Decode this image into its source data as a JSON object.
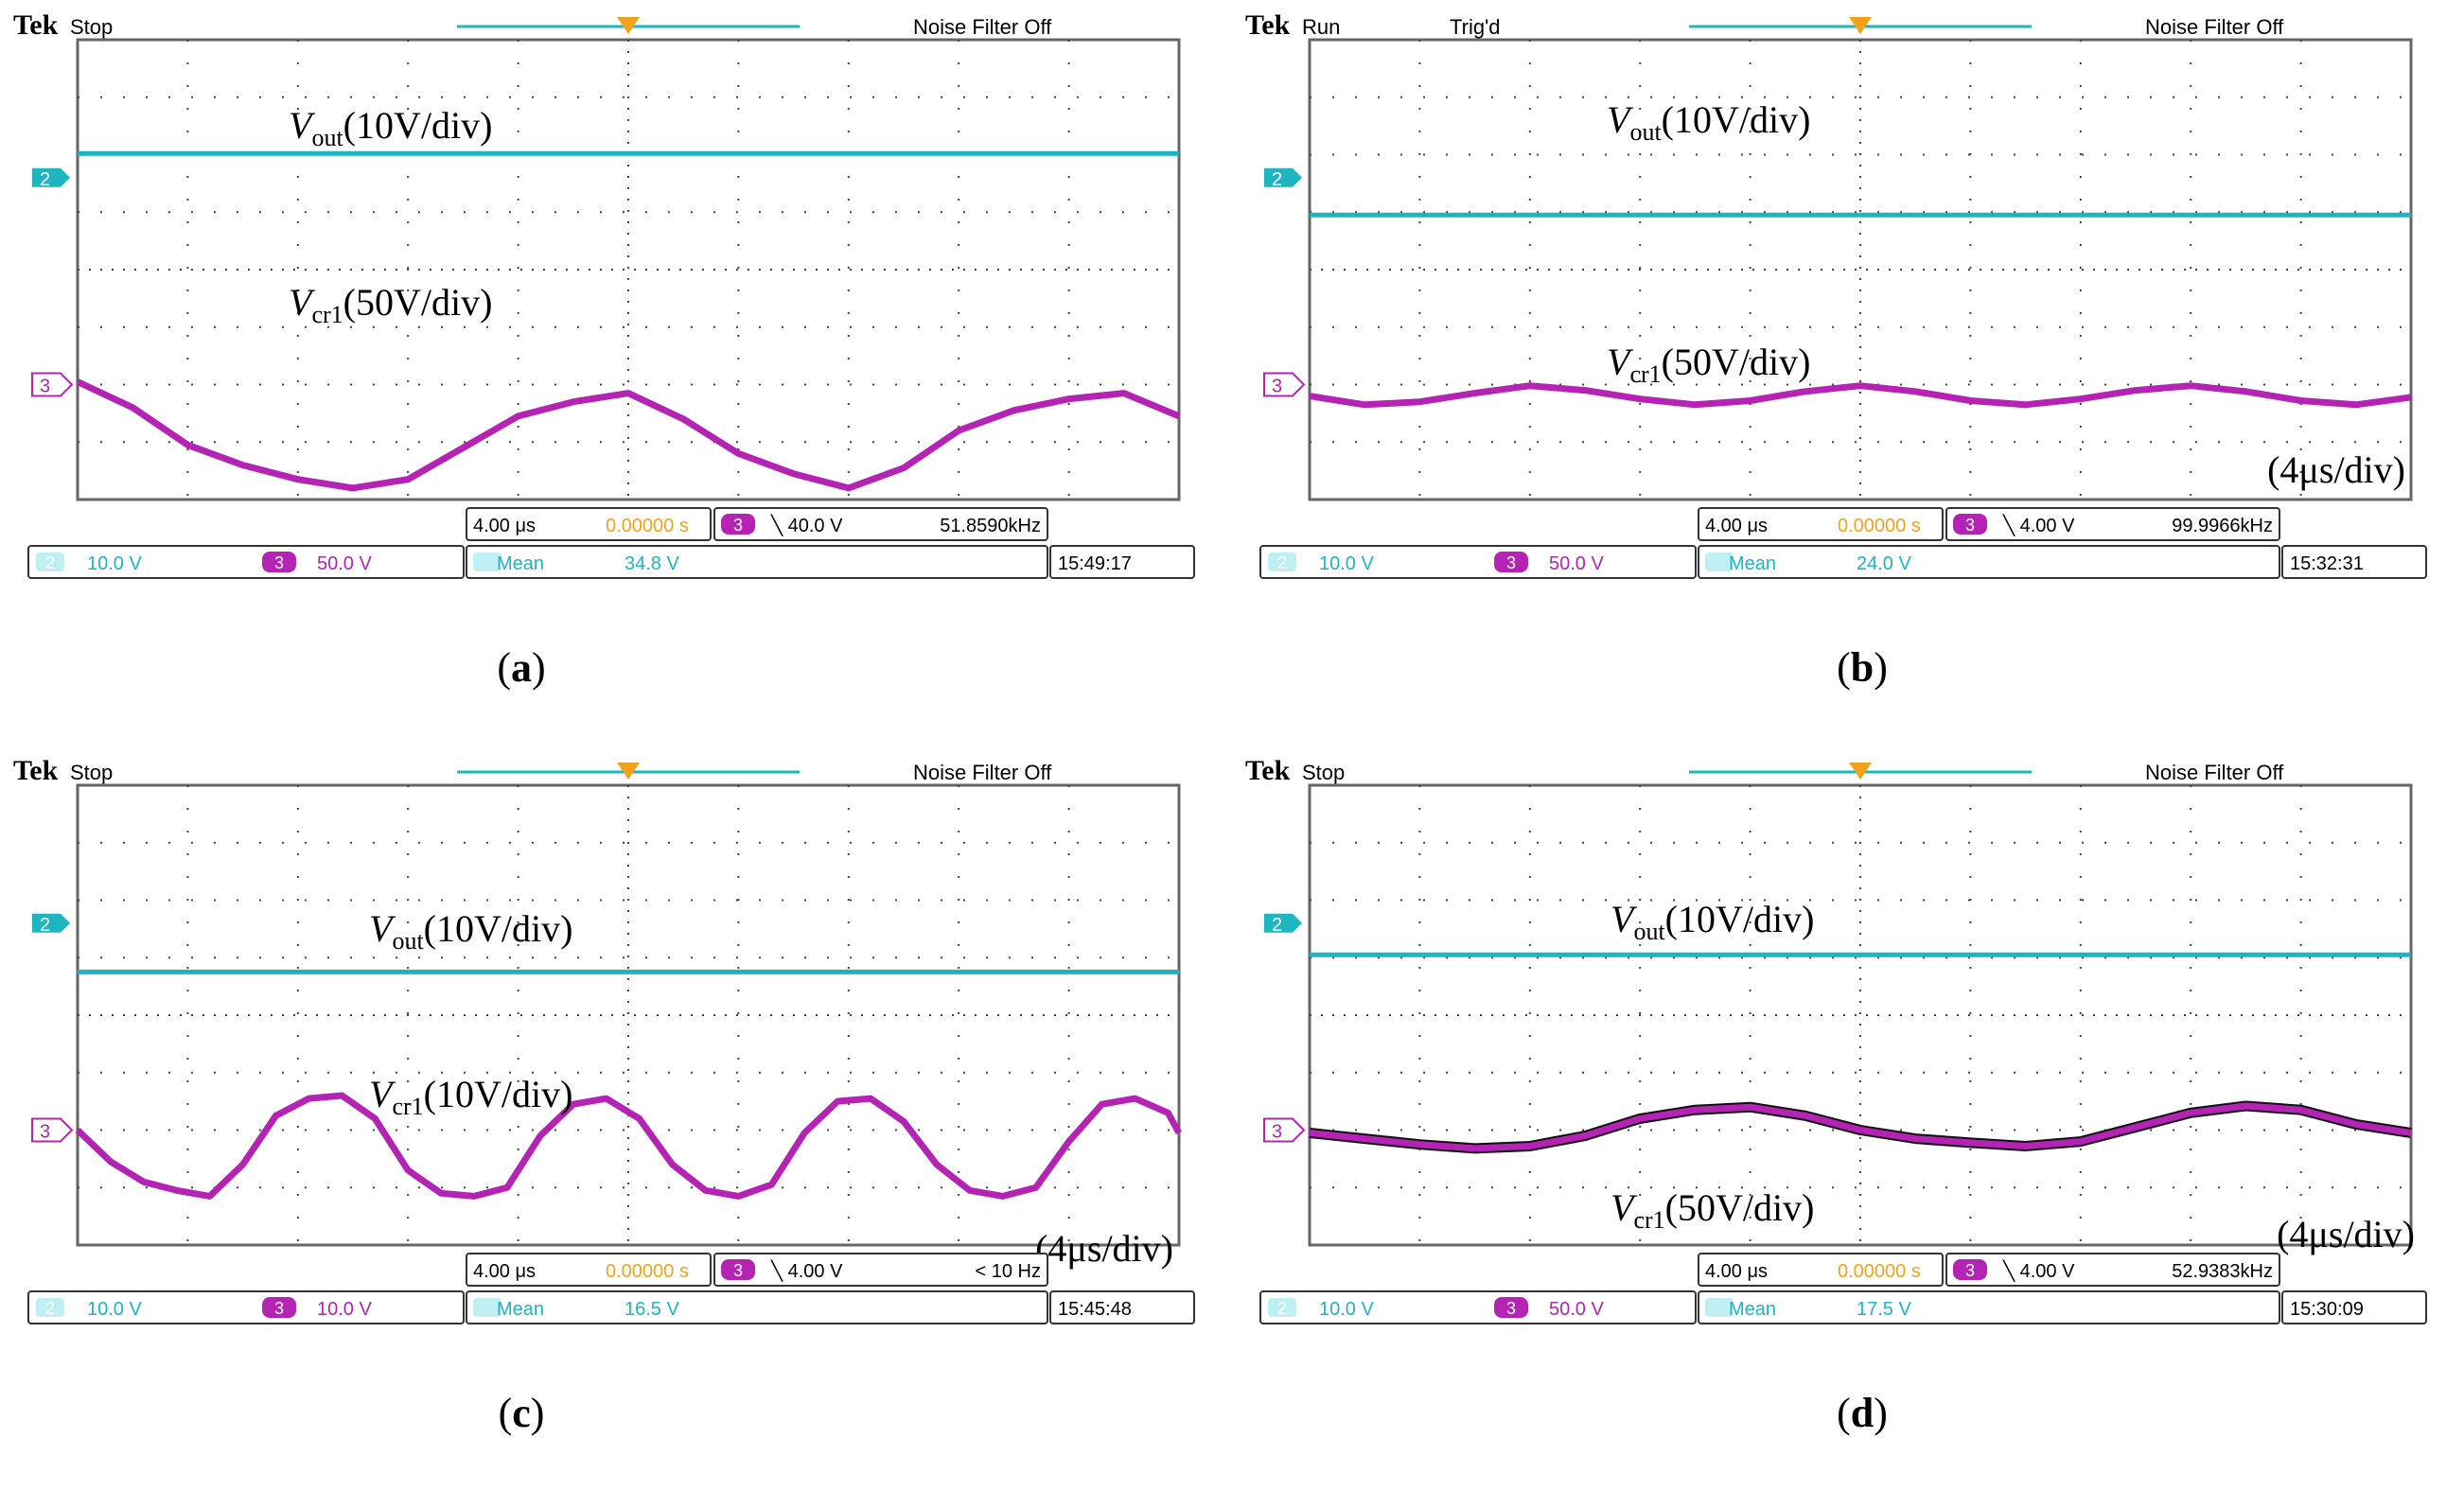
{
  "colors": {
    "ch2": "#1fb5c0",
    "ch3": "#b423b4",
    "trig": "#f2a21a",
    "ch3_shadow": "#111111"
  },
  "time_div": "(4μs/div)",
  "panels": [
    {
      "id": "a",
      "caption": "a",
      "header": {
        "brand": "Tek",
        "state": "Stop",
        "trig": "",
        "noise": "Noise Filter Off"
      },
      "labels": {
        "vout": "out",
        "vout_scale": "(10V/div)",
        "vcr": "cr1",
        "vcr_scale": "(50V/div)",
        "time": ""
      },
      "status": {
        "timebase": "4.00 μs",
        "trig_pos": "0.00000 s",
        "trig_ch": "3",
        "trig_level": "╲ 40.0 V",
        "freq": "51.8590kHz",
        "ch2_scale": "10.0 V",
        "ch3_num": "3",
        "ch3_scale": "50.0 V",
        "meas_label": "Mean",
        "meas_value": "34.8 V",
        "time": "15:49:17"
      },
      "markers": {
        "ch2": "2",
        "ch3": "3"
      }
    },
    {
      "id": "b",
      "caption": "b",
      "header": {
        "brand": "Tek",
        "state": "Run",
        "trig": "Trig'd",
        "noise": "Noise Filter Off"
      },
      "labels": {
        "vout": "out",
        "vout_scale": "(10V/div)",
        "vcr": "cr1",
        "vcr_scale": "(50V/div)",
        "time": "(4μs/div)"
      },
      "status": {
        "timebase": "4.00 μs",
        "trig_pos": "0.00000 s",
        "trig_ch": "3",
        "trig_level": "╲ 4.00 V",
        "freq": "99.9966kHz",
        "ch2_scale": "10.0 V",
        "ch3_num": "3",
        "ch3_scale": "50.0 V",
        "meas_label": "Mean",
        "meas_value": "24.0 V",
        "time": "15:32:31"
      },
      "markers": {
        "ch2": "2",
        "ch3": "3"
      }
    },
    {
      "id": "c",
      "caption": "c",
      "header": {
        "brand": "Tek",
        "state": "Stop",
        "trig": "",
        "noise": "Noise Filter Off"
      },
      "labels": {
        "vout": "out",
        "vout_scale": "(10V/div)",
        "vcr": "cr1",
        "vcr_scale": "(10V/div)",
        "time": "(4μs/div)"
      },
      "status": {
        "timebase": "4.00 μs",
        "trig_pos": "0.00000 s",
        "trig_ch": "3",
        "trig_level": "╲ 4.00 V",
        "freq": "< 10 Hz",
        "ch2_scale": "10.0 V",
        "ch3_num": "3",
        "ch3_scale": "10.0 V",
        "meas_label": "Mean",
        "meas_value": "16.5 V",
        "time": "15:45:48"
      },
      "markers": {
        "ch2": "2",
        "ch3": "3"
      }
    },
    {
      "id": "d",
      "caption": "d",
      "header": {
        "brand": "Tek",
        "state": "Stop",
        "trig": "",
        "noise": "Noise Filter Off"
      },
      "labels": {
        "vout": "out",
        "vout_scale": "(10V/div)",
        "vcr": "cr1",
        "vcr_scale": "(50V/div)",
        "time": "(4μs/div)"
      },
      "status": {
        "timebase": "4.00 μs",
        "trig_pos": "0.00000 s",
        "trig_ch": "3",
        "trig_level": "╲ 4.00 V",
        "freq": "52.9383kHz",
        "ch2_scale": "10.0 V",
        "ch3_num": "3",
        "ch3_scale": "50.0 V",
        "meas_label": "Mean",
        "meas_value": "17.5 V",
        "time": "15:30:09"
      },
      "markers": {
        "ch2": "2",
        "ch3": "3"
      }
    }
  ],
  "chart_data": [
    {
      "panel": "a",
      "type": "line",
      "x_divisions": 10,
      "y_divisions": 8,
      "series": [
        {
          "name": "Vout",
          "channel": 2,
          "x": [
            0,
            0.5,
            1,
            1.5,
            2,
            2.5,
            3,
            3.5,
            4,
            4.5,
            5,
            5.5,
            6,
            6.5,
            7,
            7.5,
            8,
            8.5,
            9,
            9.5,
            10
          ],
          "y": [
            6.02,
            6.02,
            6.02,
            6.02,
            6.02,
            6.02,
            6.02,
            6.02,
            6.02,
            6.02,
            6.02,
            6.02,
            6.02,
            6.02,
            6.02,
            6.02,
            6.02,
            6.02,
            6.02,
            6.02,
            6.02
          ]
        },
        {
          "name": "Vcr1",
          "channel": 3,
          "x": [
            0,
            0.5,
            1,
            1.5,
            2,
            2.5,
            3,
            3.5,
            4,
            4.5,
            5,
            5.5,
            6,
            6.5,
            7,
            7.5,
            8,
            8.5,
            9,
            9.5,
            10
          ],
          "y": [
            2.05,
            1.6,
            0.95,
            0.6,
            0.35,
            0.2,
            0.35,
            0.9,
            1.45,
            1.7,
            1.85,
            1.4,
            0.8,
            0.45,
            0.2,
            0.55,
            1.2,
            1.55,
            1.75,
            1.85,
            1.45
          ]
        }
      ]
    },
    {
      "panel": "b",
      "type": "line",
      "x_divisions": 10,
      "y_divisions": 8,
      "series": [
        {
          "name": "Vout",
          "channel": 2,
          "x": [
            0,
            1,
            2,
            3,
            4,
            5,
            6,
            7,
            8,
            9,
            10
          ],
          "y": [
            4.95,
            4.95,
            4.95,
            4.95,
            4.95,
            4.95,
            4.95,
            4.95,
            4.95,
            4.95,
            4.95
          ]
        },
        {
          "name": "Vcr1",
          "channel": 3,
          "x": [
            0,
            0.5,
            1,
            1.5,
            2,
            2.5,
            3,
            3.5,
            4,
            4.5,
            5,
            5.5,
            6,
            6.5,
            7,
            7.5,
            8,
            8.5,
            9,
            9.5,
            10
          ],
          "y": [
            1.8,
            1.65,
            1.7,
            1.85,
            1.98,
            1.9,
            1.75,
            1.65,
            1.72,
            1.88,
            1.98,
            1.88,
            1.72,
            1.65,
            1.75,
            1.9,
            1.98,
            1.88,
            1.72,
            1.65,
            1.78
          ]
        }
      ]
    },
    {
      "panel": "c",
      "type": "line",
      "x_divisions": 10,
      "y_divisions": 8,
      "series": [
        {
          "name": "Vout",
          "channel": 2,
          "x": [
            0,
            1,
            2,
            3,
            4,
            5,
            6,
            7,
            8,
            9,
            10
          ],
          "y": [
            4.75,
            4.75,
            4.75,
            4.75,
            4.75,
            4.75,
            4.75,
            4.75,
            4.75,
            4.75,
            4.75
          ]
        },
        {
          "name": "Vcr1",
          "channel": 3,
          "x": [
            0,
            0.3,
            0.6,
            0.9,
            1.2,
            1.5,
            1.8,
            2.1,
            2.4,
            2.7,
            3,
            3.3,
            3.6,
            3.9,
            4.2,
            4.5,
            4.8,
            5.1,
            5.4,
            5.7,
            6,
            6.3,
            6.6,
            6.9,
            7.2,
            7.5,
            7.8,
            8.1,
            8.4,
            8.7,
            9,
            9.3,
            9.6,
            9.9,
            10
          ],
          "y": [
            2.0,
            1.45,
            1.1,
            0.95,
            0.85,
            1.4,
            2.25,
            2.55,
            2.6,
            2.2,
            1.3,
            0.9,
            0.85,
            1.0,
            1.9,
            2.45,
            2.55,
            2.2,
            1.4,
            0.95,
            0.85,
            1.05,
            1.95,
            2.5,
            2.55,
            2.15,
            1.4,
            0.95,
            0.85,
            1.0,
            1.8,
            2.45,
            2.55,
            2.3,
            1.95
          ]
        }
      ]
    },
    {
      "panel": "d",
      "type": "line",
      "x_divisions": 10,
      "y_divisions": 8,
      "series": [
        {
          "name": "Vout",
          "channel": 2,
          "x": [
            0,
            1,
            2,
            3,
            4,
            5,
            6,
            7,
            8,
            9,
            10
          ],
          "y": [
            5.05,
            5.05,
            5.05,
            5.05,
            5.05,
            5.05,
            5.05,
            5.05,
            5.05,
            5.05,
            5.05
          ]
        },
        {
          "name": "Vcr1",
          "channel": 3,
          "x": [
            0,
            0.5,
            1,
            1.5,
            2,
            2.5,
            3,
            3.5,
            4,
            4.5,
            5,
            5.5,
            6,
            6.5,
            7,
            7.5,
            8,
            8.5,
            9,
            9.5,
            10
          ],
          "y": [
            1.95,
            1.85,
            1.75,
            1.68,
            1.72,
            1.9,
            2.2,
            2.35,
            2.4,
            2.25,
            2.0,
            1.85,
            1.78,
            1.72,
            1.8,
            2.05,
            2.3,
            2.42,
            2.35,
            2.1,
            1.95
          ]
        }
      ]
    }
  ]
}
